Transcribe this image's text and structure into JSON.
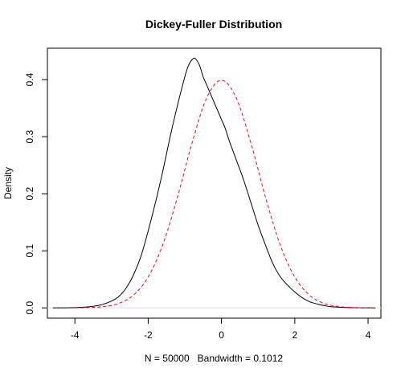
{
  "chart_data": {
    "type": "line",
    "title": "Dickey-Fuller Distribution",
    "xlabel": "N = 50000   Bandwidth = 0.1012",
    "ylabel": "Density",
    "xlim": [
      -4.75,
      4.35
    ],
    "ylim": [
      -0.018,
      0.455
    ],
    "x_ticks": [
      "-4",
      "-2",
      "0",
      "2",
      "4"
    ],
    "y_ticks": [
      "0.0",
      "0.1",
      "0.2",
      "0.3",
      "0.4"
    ],
    "grid": false,
    "series": [
      {
        "style": "solid",
        "color": "#000000",
        "x": [
          -4.6,
          -4.0,
          -3.6,
          -3.3,
          -3.0,
          -2.8,
          -2.6,
          -2.4,
          -2.2,
          -2.0,
          -1.8,
          -1.6,
          -1.4,
          -1.2,
          -1.0,
          -0.9,
          -0.8,
          -0.72,
          -0.6,
          -0.5,
          -0.4,
          -0.3,
          -0.2,
          -0.1,
          0.0,
          0.1,
          0.2,
          0.4,
          0.6,
          0.8,
          1.0,
          1.2,
          1.4,
          1.6,
          1.8,
          2.0,
          2.2,
          2.4,
          2.6,
          2.8,
          3.0,
          3.4,
          3.8,
          4.2
        ],
        "y": [
          0.0,
          0.0005,
          0.002,
          0.005,
          0.012,
          0.02,
          0.035,
          0.058,
          0.09,
          0.135,
          0.185,
          0.24,
          0.3,
          0.355,
          0.405,
          0.425,
          0.435,
          0.437,
          0.425,
          0.405,
          0.39,
          0.375,
          0.36,
          0.345,
          0.33,
          0.315,
          0.295,
          0.26,
          0.225,
          0.185,
          0.145,
          0.11,
          0.078,
          0.055,
          0.04,
          0.028,
          0.018,
          0.011,
          0.007,
          0.004,
          0.002,
          0.0007,
          0.0002,
          0.0
        ]
      },
      {
        "style": "dashed",
        "color": "#ff0000",
        "x": [
          -4.0,
          -3.6,
          -3.2,
          -2.8,
          -2.4,
          -2.0,
          -1.6,
          -1.2,
          -0.8,
          -0.4,
          0.0,
          0.4,
          0.8,
          1.2,
          1.6,
          2.0,
          2.4,
          2.8,
          3.2,
          3.6,
          4.0,
          4.2
        ],
        "y": [
          0.0001,
          0.0006,
          0.0024,
          0.0079,
          0.0224,
          0.054,
          0.1109,
          0.1942,
          0.2897,
          0.3683,
          0.3989,
          0.3683,
          0.2897,
          0.1942,
          0.1109,
          0.054,
          0.0224,
          0.0079,
          0.0024,
          0.0006,
          0.0001,
          0.0
        ]
      }
    ]
  }
}
